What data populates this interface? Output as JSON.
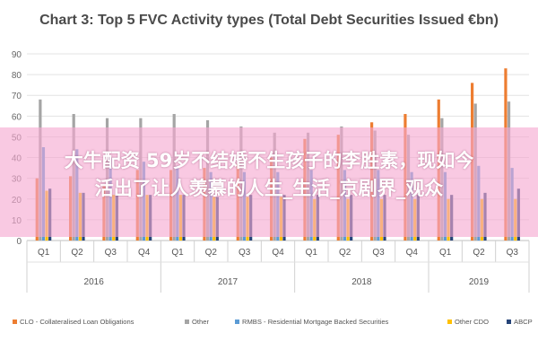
{
  "chart_data": {
    "type": "bar",
    "title": "Chart 3: Top 5 FVC Activity types (Total Debt Securities Issued €bn)",
    "xlabel": "",
    "ylabel": "",
    "ylim": [
      0,
      90
    ],
    "yticks": [
      0,
      10,
      20,
      30,
      40,
      50,
      60,
      70,
      80,
      90
    ],
    "grid": true,
    "legend_position": "bottom",
    "categories": [
      "Q1",
      "Q2",
      "Q3",
      "Q4",
      "Q1",
      "Q2",
      "Q3",
      "Q4",
      "Q1",
      "Q2",
      "Q3",
      "Q4",
      "Q1",
      "Q2",
      "Q3"
    ],
    "year_groups": [
      {
        "label": "2016",
        "count": 4
      },
      {
        "label": "2017",
        "count": 4
      },
      {
        "label": "2018",
        "count": 4
      },
      {
        "label": "2019",
        "count": 3
      }
    ],
    "series": [
      {
        "name": "CLO - Collateralised Loan Obligations",
        "color": "#ed7d31",
        "values": [
          30,
          31,
          27,
          34,
          34,
          35,
          37,
          40,
          49,
          51,
          57,
          61,
          68,
          76,
          83
        ]
      },
      {
        "name": "Other",
        "color": "#a5a5a5",
        "values": [
          68,
          61,
          59,
          59,
          61,
          58,
          55,
          52,
          52,
          55,
          53,
          51,
          59,
          66,
          67
        ]
      },
      {
        "name": "RMBS - Residential Mortgage Backed Securities",
        "color": "#5b9bd5",
        "values": [
          45,
          44,
          40,
          38,
          36,
          33,
          33,
          33,
          34,
          34,
          34,
          33,
          33,
          36,
          35
        ]
      },
      {
        "name": "Other CDO",
        "color": "#ffc000",
        "values": [
          24,
          23,
          22,
          22,
          22,
          21,
          21,
          21,
          20,
          20,
          20,
          20,
          20,
          20,
          20
        ]
      },
      {
        "name": "ABCP",
        "color": "#264478",
        "values": [
          25,
          23,
          22,
          22,
          22,
          21,
          22,
          22,
          22,
          22,
          22,
          22,
          22,
          23,
          25
        ]
      }
    ]
  },
  "overlay": {
    "line1": "大牛配资 59岁不结婚不生孩子的李胜素，现如今",
    "line2": "活出了让人羡慕的人生_生活_京剧界_观众"
  }
}
